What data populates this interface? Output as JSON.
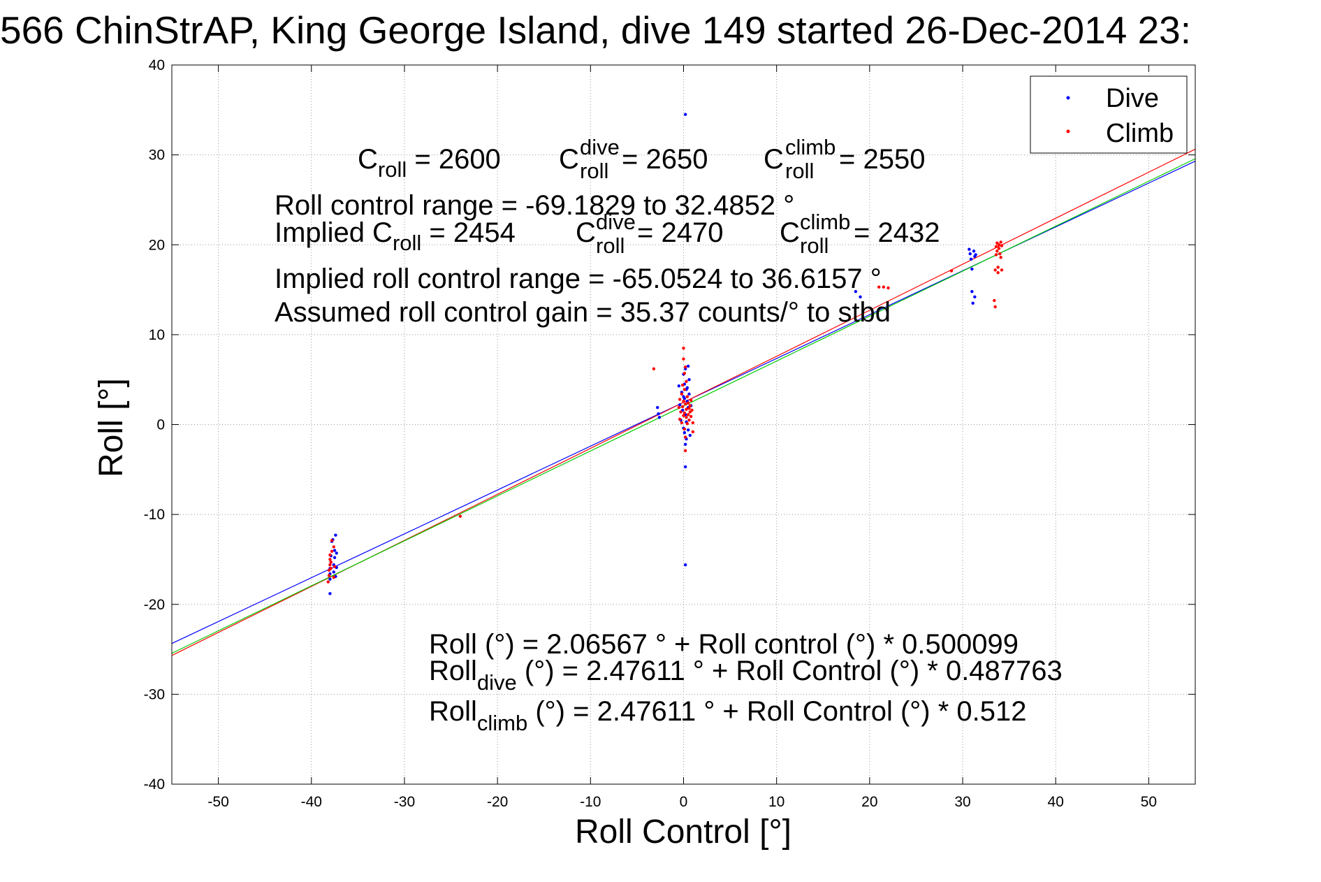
{
  "chart_data": {
    "type": "scatter",
    "title": "566 ChinStrAP, King George Island, dive 149 started 26-Dec-2014 23:",
    "xlabel": "Roll Control [°]",
    "ylabel": "Roll [°]",
    "xlim": [
      -55,
      55
    ],
    "ylim": [
      -40,
      40
    ],
    "xticks": [
      -50,
      -40,
      -30,
      -20,
      -10,
      0,
      10,
      20,
      30,
      40,
      50
    ],
    "yticks": [
      -40,
      -30,
      -20,
      -10,
      0,
      10,
      20,
      30,
      40
    ],
    "grid": true,
    "legend_position": "top-right",
    "series": [
      {
        "name": "Dive",
        "color": "#0000ff",
        "marker": "dot",
        "points": [
          [
            -38.0,
            -18.8
          ],
          [
            -38.0,
            -17.2
          ],
          [
            -38.0,
            -16.6
          ],
          [
            -38.0,
            -16.0
          ],
          [
            -37.9,
            -15.3
          ],
          [
            -37.9,
            -14.6
          ],
          [
            -37.8,
            -13.0
          ],
          [
            -37.7,
            -12.8
          ],
          [
            -37.6,
            -16.4
          ],
          [
            -37.6,
            -15.6
          ],
          [
            -37.5,
            -14.8
          ],
          [
            -37.5,
            -14.0
          ],
          [
            -37.4,
            -12.3
          ],
          [
            -37.4,
            -16.9
          ],
          [
            -37.3,
            -15.9
          ],
          [
            -37.3,
            -14.3
          ],
          [
            -2.8,
            1.9
          ],
          [
            -2.7,
            1.2
          ],
          [
            -2.6,
            0.8
          ],
          [
            -0.5,
            4.3
          ],
          [
            -0.4,
            2.2
          ],
          [
            -0.3,
            0.5
          ],
          [
            -0.2,
            3.6
          ],
          [
            -0.1,
            1.6
          ],
          [
            0.0,
            3.1
          ],
          [
            0.0,
            5.6
          ],
          [
            0.0,
            -0.4
          ],
          [
            0.1,
            2.9
          ],
          [
            0.1,
            4.5
          ],
          [
            0.1,
            -0.9
          ],
          [
            0.2,
            34.5
          ],
          [
            0.2,
            6.2
          ],
          [
            0.2,
            1.1
          ],
          [
            0.2,
            -2.2
          ],
          [
            0.2,
            -4.7
          ],
          [
            0.2,
            -15.6
          ],
          [
            0.3,
            3.9
          ],
          [
            0.3,
            0.3
          ],
          [
            0.3,
            -1.6
          ],
          [
            0.4,
            4.1
          ],
          [
            0.4,
            2.6
          ],
          [
            0.5,
            6.5
          ],
          [
            0.5,
            1.9
          ],
          [
            0.5,
            -0.6
          ],
          [
            0.6,
            3.4
          ],
          [
            0.6,
            5.0
          ],
          [
            0.7,
            -1.2
          ],
          [
            0.8,
            2.1
          ],
          [
            18.5,
            14.8
          ],
          [
            19.0,
            14.2
          ],
          [
            30.7,
            19.5
          ],
          [
            30.8,
            19.0
          ],
          [
            30.9,
            18.4
          ],
          [
            31.0,
            17.3
          ],
          [
            31.0,
            14.8
          ],
          [
            31.1,
            13.5
          ],
          [
            31.2,
            19.3
          ],
          [
            31.3,
            18.7
          ],
          [
            31.3,
            14.2
          ],
          [
            31.4,
            18.9
          ]
        ]
      },
      {
        "name": "Climb",
        "color": "#ff0000",
        "marker": "dot",
        "points": [
          [
            -38.2,
            -17.5
          ],
          [
            -38.1,
            -16.8
          ],
          [
            -38.1,
            -16.2
          ],
          [
            -38.0,
            -15.6
          ],
          [
            -38.0,
            -15.0
          ],
          [
            -38.0,
            -14.5
          ],
          [
            -37.9,
            -16.0
          ],
          [
            -37.9,
            -15.3
          ],
          [
            -37.8,
            -14.1
          ],
          [
            -37.8,
            -12.9
          ],
          [
            -37.6,
            -17.0
          ],
          [
            -37.6,
            -13.6
          ],
          [
            -37.5,
            -15.8
          ],
          [
            -24.0,
            -10.2
          ],
          [
            -3.2,
            6.2
          ],
          [
            -0.5,
            1.9
          ],
          [
            -0.4,
            0.6
          ],
          [
            -0.4,
            2.8
          ],
          [
            -0.3,
            1.4
          ],
          [
            -0.2,
            3.4
          ],
          [
            -0.2,
            0.2
          ],
          [
            -0.1,
            2.0
          ],
          [
            -0.1,
            4.4
          ],
          [
            0.0,
            1.0
          ],
          [
            0.0,
            2.6
          ],
          [
            0.0,
            8.5
          ],
          [
            0.0,
            7.3
          ],
          [
            0.1,
            5.7
          ],
          [
            0.1,
            3.9
          ],
          [
            0.1,
            1.3
          ],
          [
            0.1,
            -0.5
          ],
          [
            0.2,
            6.4
          ],
          [
            0.2,
            2.3
          ],
          [
            0.2,
            -1.4
          ],
          [
            0.2,
            -2.9
          ],
          [
            0.3,
            0.8
          ],
          [
            0.3,
            4.8
          ],
          [
            0.3,
            1.7
          ],
          [
            0.4,
            3.1
          ],
          [
            0.4,
            0.1
          ],
          [
            0.5,
            2.4
          ],
          [
            0.5,
            1.1
          ],
          [
            0.6,
            1.8
          ],
          [
            0.6,
            0.5
          ],
          [
            0.7,
            2.1
          ],
          [
            0.7,
            1.4
          ],
          [
            0.8,
            0.9
          ],
          [
            0.8,
            2.7
          ],
          [
            0.9,
            1.6
          ],
          [
            1.0,
            0.2
          ],
          [
            1.0,
            -0.8
          ],
          [
            21.0,
            15.3
          ],
          [
            21.5,
            15.3
          ],
          [
            22.0,
            15.2
          ],
          [
            28.8,
            17.1
          ],
          [
            33.4,
            13.8
          ],
          [
            33.5,
            13.1
          ],
          [
            33.5,
            17.2
          ],
          [
            33.6,
            19.8
          ],
          [
            33.6,
            18.9
          ],
          [
            33.7,
            20.2
          ],
          [
            33.7,
            19.3
          ],
          [
            33.8,
            17.5
          ],
          [
            33.8,
            16.9
          ],
          [
            33.9,
            20.0
          ],
          [
            33.9,
            19.6
          ],
          [
            34.0,
            19.0
          ],
          [
            34.1,
            20.3
          ],
          [
            34.1,
            18.6
          ],
          [
            34.2,
            19.9
          ],
          [
            34.2,
            17.2
          ]
        ]
      }
    ],
    "fit_lines": [
      {
        "color": "#0000ff",
        "intercept": 2.47611,
        "slope": 0.487763
      },
      {
        "color": "#ff0000",
        "intercept": 2.47611,
        "slope": 0.512
      },
      {
        "color": "#00cc00",
        "intercept": 2.06567,
        "slope": 0.500099
      }
    ],
    "annotations": {
      "c_roll_label": "C",
      "c_roll_sub": "roll",
      "c_roll_value": " = 2600",
      "c_dive_label": "C",
      "c_dive_sup": "dive",
      "c_dive_sub": "roll",
      "c_dive_value": " = 2650",
      "c_climb_label": "C",
      "c_climb_sup": "climb",
      "c_climb_sub": "roll",
      "c_climb_value": " = 2550",
      "roll_control_range": "Roll control range = -69.1829 to 32.4852 °",
      "implied_label": "Implied C",
      "implied_sub": "roll",
      "implied_value": " = 2454",
      "implied_dive_label": "C",
      "implied_dive_sup": "dive",
      "implied_dive_sub": "roll",
      "implied_dive_value": " = 2470",
      "implied_climb_label": "C",
      "implied_climb_sup": "climb",
      "implied_climb_sub": "roll",
      "implied_climb_value": " = 2432",
      "implied_range": "Implied roll control range = -65.0524 to 36.6157 °",
      "gain": "Assumed roll control gain = 35.37 counts/° to stbd",
      "eq_all": "Roll (°) = 2.06567 ° + Roll control (°) * 0.500099",
      "eq_dive_pre": "Roll",
      "eq_dive_sub": "dive",
      "eq_dive_post": " (°) = 2.47611 ° + Roll Control (°) * 0.487763",
      "eq_climb_pre": "Roll",
      "eq_climb_sub": "climb",
      "eq_climb_post": " (°) = 2.47611 ° + Roll Control (°) * 0.512"
    }
  }
}
